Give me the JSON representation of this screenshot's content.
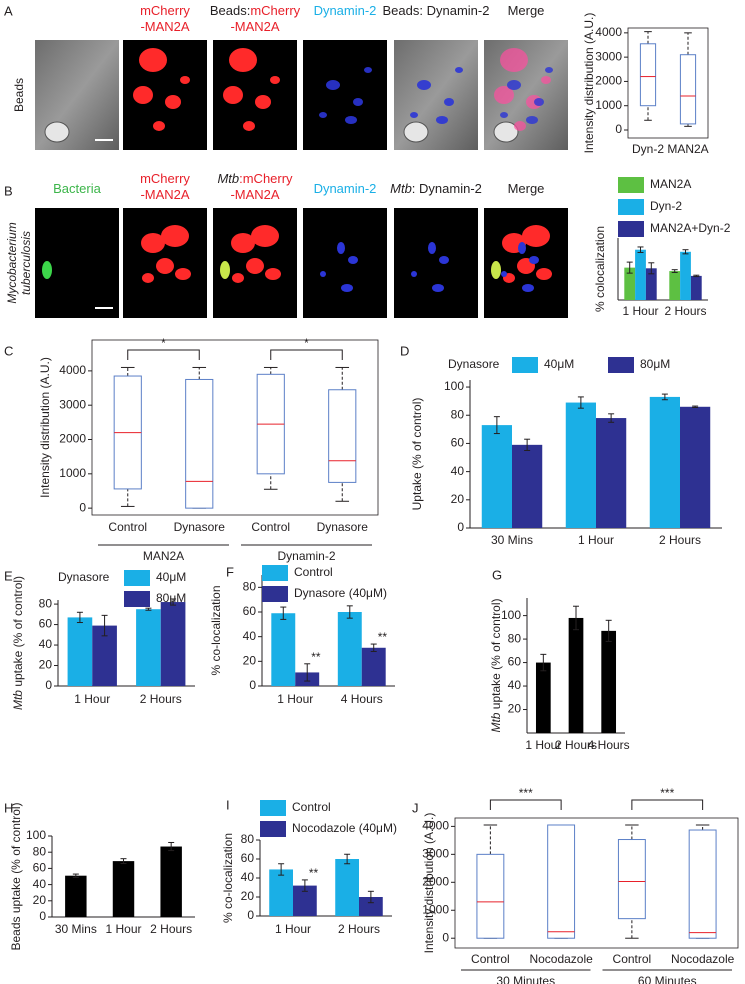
{
  "panel_labels": [
    "A",
    "B",
    "C",
    "D",
    "E",
    "F",
    "G",
    "H",
    "I",
    "J"
  ],
  "microscopy": {
    "rows": [
      {
        "label": [
          [
            {
              "text": "Beads"
            }
          ]
        ],
        "headers": [
          null,
          [
            [
              {
                "text": "mCherry",
                "color": "#e8202a"
              }
            ],
            [
              {
                "text": "-MAN2A",
                "color": "#e8202a"
              }
            ]
          ],
          [
            [
              {
                "text": "Beads:",
                "color": "#231f20"
              },
              {
                "text": "mCherry",
                "color": "#e8202a"
              }
            ],
            [
              {
                "text": "-MAN2A",
                "color": "#e8202a"
              }
            ]
          ],
          [
            [
              {
                "text": "Dynamin-2",
                "color": "#1aafe6"
              }
            ]
          ],
          [
            [
              {
                "text": "Beads: Dynamin-2",
                "color": "#231f20"
              }
            ]
          ],
          [
            [
              {
                "text": "Merge",
                "color": "#231f20"
              }
            ]
          ]
        ]
      },
      {
        "label": [
          [
            {
              "text": "Mycobacterium",
              "italic": true
            }
          ],
          [
            {
              "text": "tuberculosis",
              "italic": true
            }
          ]
        ],
        "headers": [
          [
            [
              {
                "text": "Bacteria",
                "color": "#3cb54a"
              }
            ]
          ],
          [
            [
              {
                "text": "mCherry",
                "color": "#e8202a"
              }
            ],
            [
              {
                "text": "-MAN2A",
                "color": "#e8202a"
              }
            ]
          ],
          [
            [
              {
                "text": "Mtb",
                "color": "#231f20",
                "italic": true
              },
              {
                "text": ":mCherry",
                "color": "#e8202a"
              }
            ],
            [
              {
                "text": "-MAN2A",
                "color": "#e8202a"
              }
            ]
          ],
          [
            [
              {
                "text": "Dynamin-2",
                "color": "#1aafe6"
              }
            ]
          ],
          [
            [
              {
                "text": "Mtb",
                "color": "#231f20",
                "italic": true
              },
              {
                "text": ": Dynamin-2",
                "color": "#231f20"
              }
            ]
          ],
          [
            [
              {
                "text": "Merge",
                "color": "#231f20"
              }
            ]
          ]
        ]
      }
    ]
  },
  "chart_data": [
    {
      "type": "box",
      "ylabel": "Intensity distribution (A.U.)",
      "categories": [
        "Dyn-2",
        "MAN2A"
      ],
      "boxes": [
        {
          "whislo": 400,
          "q1": 1000,
          "med": 2200,
          "q3": 3550,
          "whishi": 4050
        },
        {
          "whislo": 150,
          "q1": 250,
          "med": 1400,
          "q3": 3100,
          "whishi": 4000
        }
      ],
      "ylim": [
        -330,
        4200
      ],
      "yticks": [
        0,
        1000,
        2000,
        3000,
        4000
      ],
      "box_color": "#5b7fc7",
      "median_color": "#e8202a"
    },
    {
      "type": "bar",
      "ylabel": "% colocalization",
      "categories": [
        "1 Hour",
        "2 Hours"
      ],
      "series": [
        {
          "name": "MAN2A",
          "color": "#5dc042",
          "values": [
            47,
            42
          ],
          "errors": [
            8,
            2
          ]
        },
        {
          "name": "Dyn-2",
          "color": "#1aafe6",
          "values": [
            73,
            70
          ],
          "errors": [
            4,
            3
          ]
        },
        {
          "name": "MAN2A+Dyn-2",
          "color": "#2e3192",
          "values": [
            46,
            35
          ],
          "errors": [
            8,
            1
          ]
        }
      ],
      "ylim": [
        0,
        90
      ]
    },
    {
      "type": "box",
      "ylabel": "Intensity distribution (A.U.)",
      "categories": [
        "Control",
        "Dynasore",
        "Control",
        "Dynasore"
      ],
      "groups": [
        "MAN2A",
        "Dynamin-2"
      ],
      "significance": [
        "*",
        "*"
      ],
      "boxes": [
        {
          "whislo": 50,
          "q1": 560,
          "med": 2200,
          "q3": 3850,
          "whishi": 4100
        },
        {
          "whislo": 0,
          "q1": 0,
          "med": 780,
          "q3": 3750,
          "whishi": 4100
        },
        {
          "whislo": 550,
          "q1": 1000,
          "med": 2450,
          "q3": 3900,
          "whishi": 4100
        },
        {
          "whislo": 200,
          "q1": 750,
          "med": 1380,
          "q3": 3450,
          "whishi": 4100
        }
      ],
      "ylim": [
        -200,
        4900
      ],
      "yticks": [
        0,
        1000,
        2000,
        3000,
        4000
      ],
      "box_color": "#5b7fc7",
      "median_color": "#e8202a"
    },
    {
      "type": "bar",
      "ylabel": "Uptake (% of control)",
      "legend_title": "Dynasore",
      "categories": [
        "30 Mins",
        "1 Hour",
        "2 Hours"
      ],
      "series": [
        {
          "name": "40μM",
          "color": "#1aafe6",
          "values": [
            73,
            89,
            93
          ],
          "errors": [
            6,
            4,
            2
          ]
        },
        {
          "name": "80μM",
          "color": "#2e3192",
          "values": [
            59,
            78,
            86
          ],
          "errors": [
            4,
            3,
            0.5
          ]
        }
      ],
      "ylim": [
        0,
        105
      ],
      "yticks": [
        0,
        20,
        40,
        60,
        80,
        100
      ]
    },
    {
      "type": "bar",
      "ylabel": [
        {
          "text": "Mtb",
          "italic": true
        },
        {
          "text": " uptake (% of control)"
        }
      ],
      "legend_title": "Dynasore",
      "categories": [
        "1 Hour",
        "2 Hours"
      ],
      "series": [
        {
          "name": "40μM",
          "color": "#1aafe6",
          "values": [
            67,
            75
          ],
          "errors": [
            5,
            1
          ]
        },
        {
          "name": "80μM",
          "color": "#2e3192",
          "values": [
            59,
            82
          ],
          "errors": [
            10,
            3
          ]
        }
      ],
      "ylim": [
        0,
        84
      ],
      "yticks": [
        0,
        20,
        40,
        60,
        80
      ]
    },
    {
      "type": "bar",
      "ylabel": "% co-localization",
      "categories": [
        "1 Hour",
        "4 Hours"
      ],
      "series": [
        {
          "name": "Control",
          "color": "#1aafe6",
          "values": [
            59,
            60
          ],
          "errors": [
            5,
            5
          ]
        },
        {
          "name": "Dynasore (40μM)",
          "color": "#2e3192",
          "values": [
            11,
            31
          ],
          "errors": [
            7,
            3
          ],
          "value_annotations": [
            "**",
            "**"
          ]
        }
      ],
      "ylim": [
        0,
        90
      ],
      "yticks": [
        0,
        20,
        40,
        60,
        80
      ]
    },
    {
      "type": "bar",
      "ylabel": [
        {
          "text": "Mtb",
          "italic": true
        },
        {
          "text": " uptake (% of control)"
        }
      ],
      "categories": [
        "1 Hour",
        "2 Hours",
        "4 Hours"
      ],
      "series": [
        {
          "color": "#000000",
          "values": [
            60,
            98,
            87
          ],
          "errors": [
            7,
            10,
            9
          ]
        }
      ],
      "ylim": [
        0,
        115
      ],
      "yticks": [
        20,
        40,
        60,
        80,
        100
      ]
    },
    {
      "type": "bar",
      "ylabel": "Beads uptake (% of control)",
      "categories": [
        "30 Mins",
        "1 Hour",
        "2 Hours"
      ],
      "series": [
        {
          "color": "#000000",
          "values": [
            51,
            69,
            87
          ],
          "errors": [
            2,
            3,
            5
          ]
        }
      ],
      "ylim": [
        0,
        100
      ],
      "yticks": [
        0,
        20,
        40,
        60,
        80,
        100
      ]
    },
    {
      "type": "bar",
      "ylabel": "% co-localization",
      "categories": [
        "1 Hour",
        "2 Hours"
      ],
      "series": [
        {
          "name": "Control",
          "color": "#1aafe6",
          "values": [
            49,
            60
          ],
          "errors": [
            6,
            5
          ]
        },
        {
          "name": "Nocodazole (40μM)",
          "color": "#2e3192",
          "values": [
            32,
            20
          ],
          "errors": [
            6,
            6
          ],
          "value_annotations": [
            "**",
            null
          ]
        }
      ],
      "ylim": [
        0,
        80
      ],
      "yticks": [
        0,
        20,
        40,
        60,
        80
      ]
    },
    {
      "type": "box",
      "ylabel": "Intensity distribution (A.U.)",
      "categories": [
        "Control",
        "Nocodazole",
        "Control",
        "Nocodazole"
      ],
      "groups": [
        "30 Minutes",
        "60 Minutes"
      ],
      "significance": [
        "***",
        "***"
      ],
      "boxes": [
        {
          "whislo": 0,
          "q1": 0,
          "med": 1300,
          "q3": 3000,
          "whishi": 4050
        },
        {
          "whislo": 0,
          "q1": 0,
          "med": 230,
          "q3": 4050,
          "whishi": 4050
        },
        {
          "whislo": 0,
          "q1": 700,
          "med": 2030,
          "q3": 3530,
          "whishi": 4050
        },
        {
          "whislo": 0,
          "q1": 0,
          "med": 200,
          "q3": 3870,
          "whishi": 4050
        }
      ],
      "ylim": [
        -350,
        4300
      ],
      "yticks": [
        0,
        1000,
        2000,
        3000,
        4000
      ],
      "box_color": "#5b7fc7",
      "median_color": "#e8202a"
    }
  ]
}
